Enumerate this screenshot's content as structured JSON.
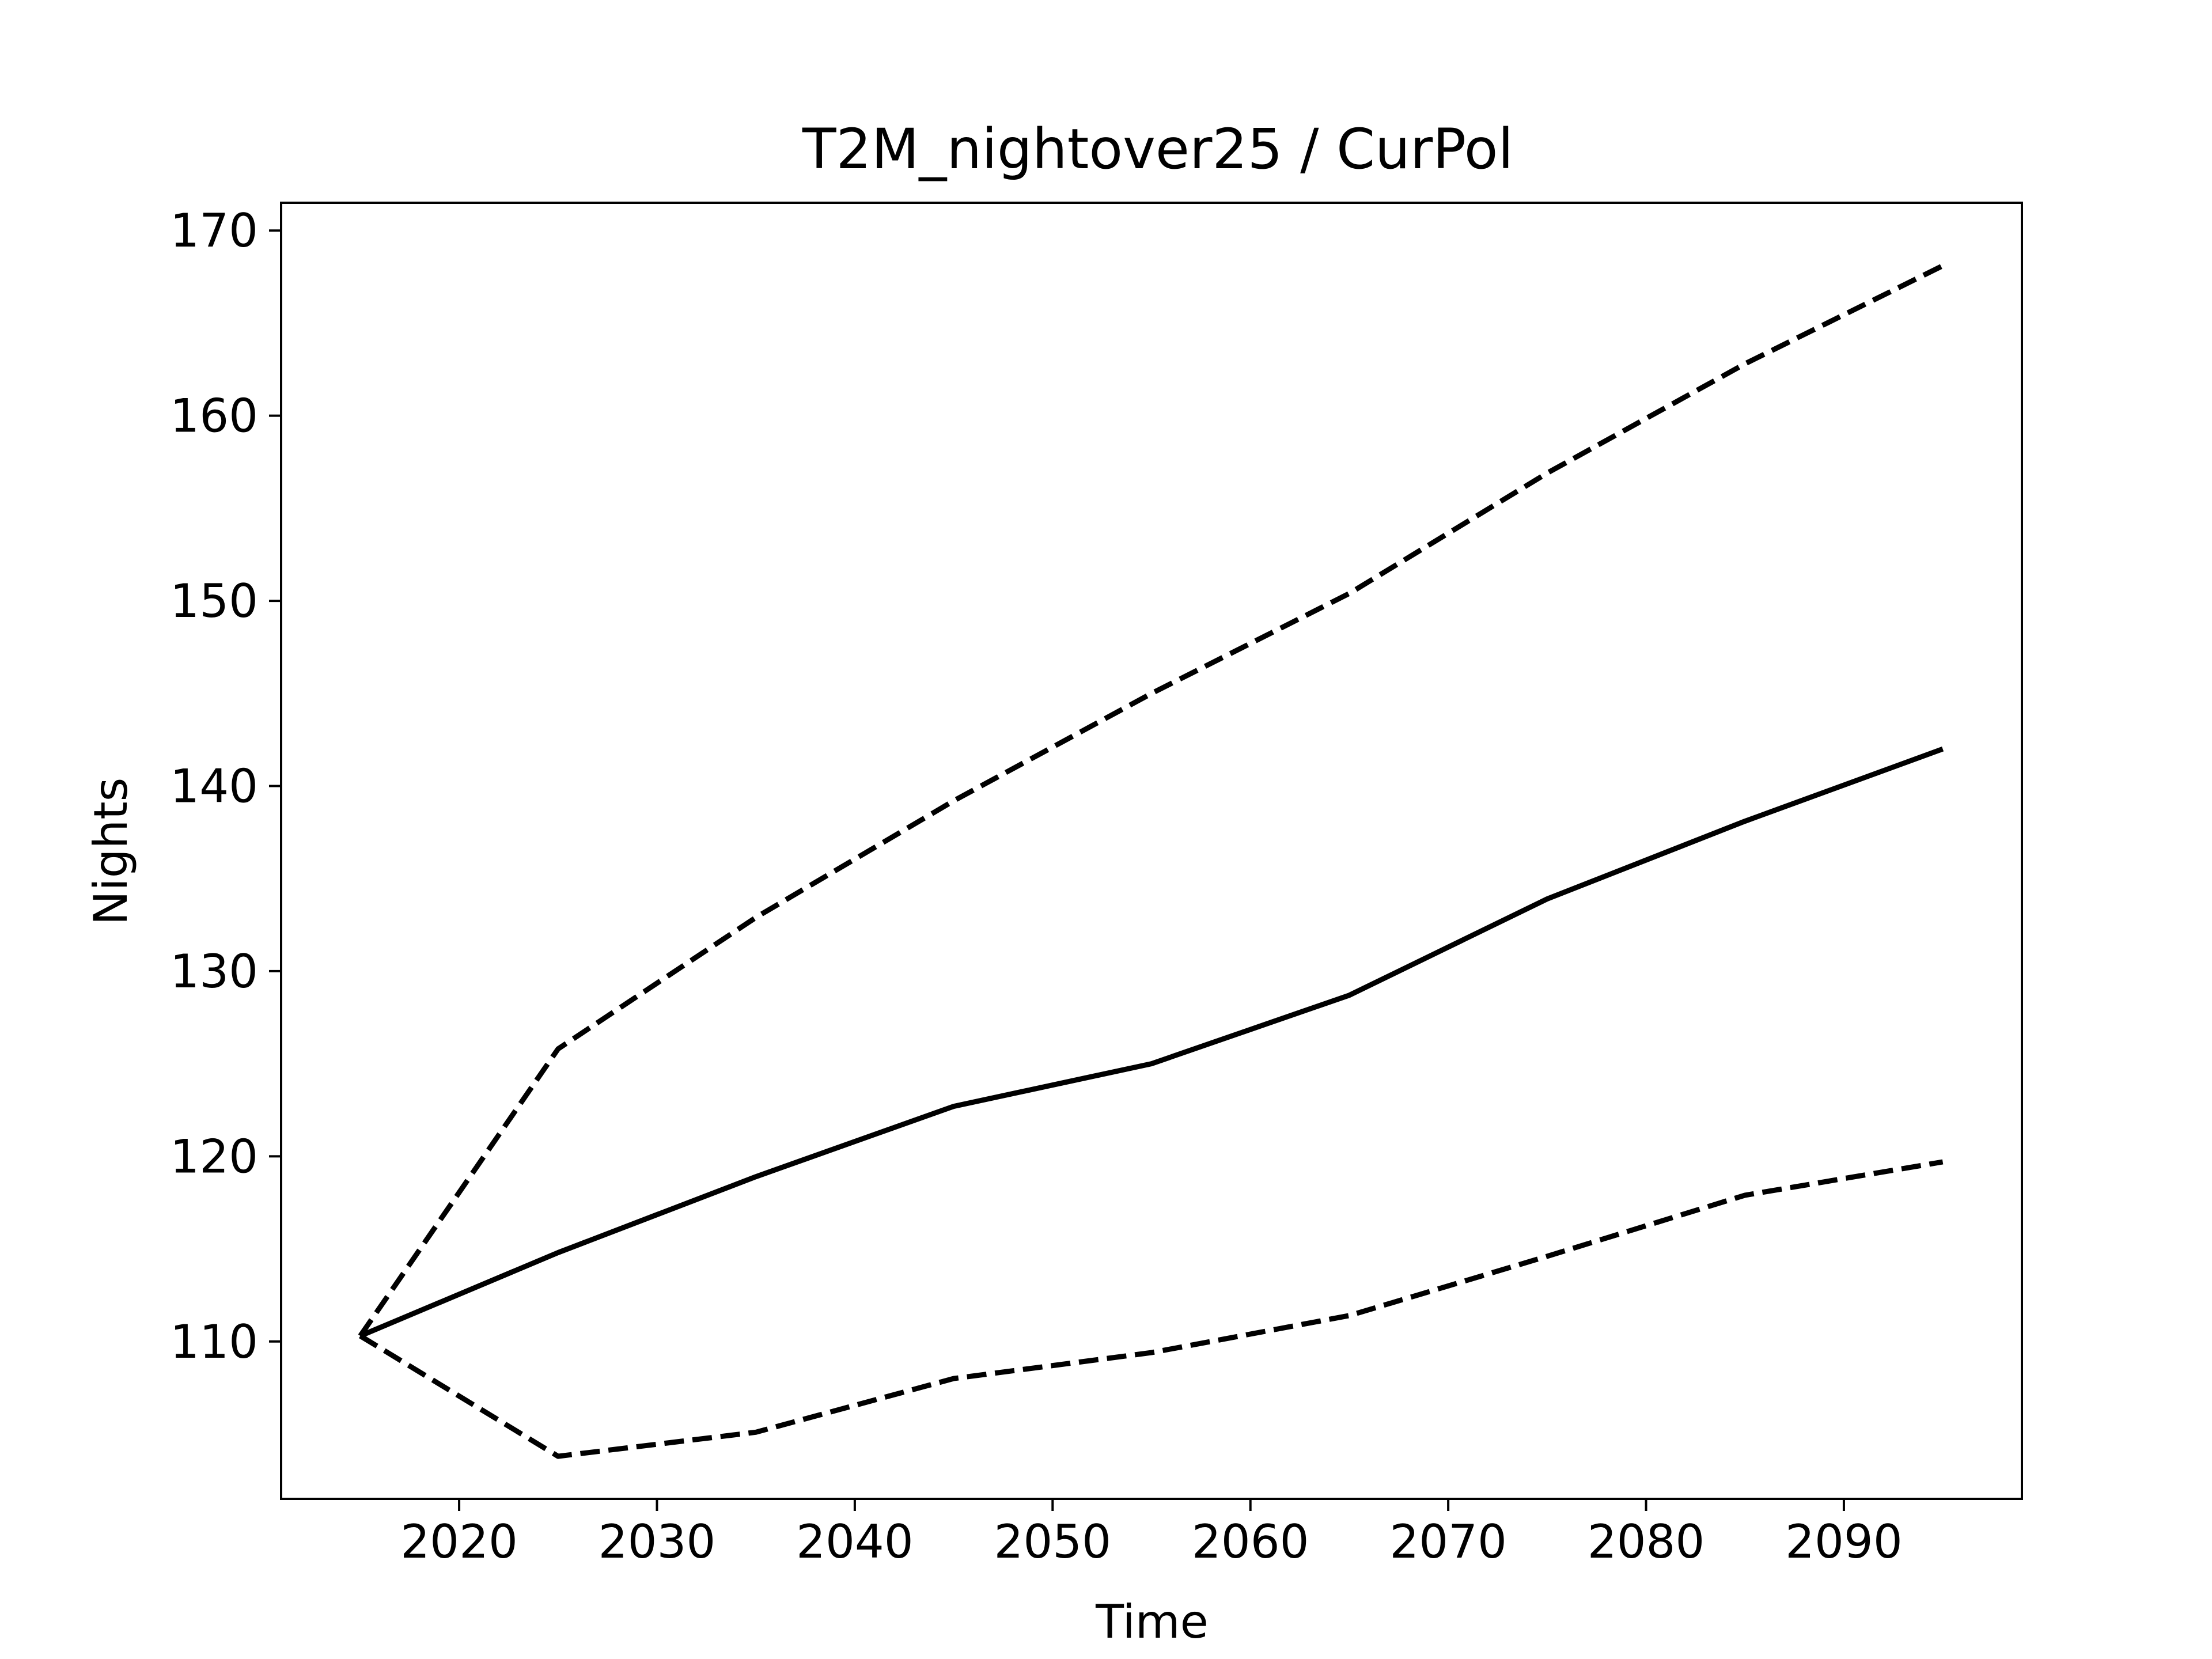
{
  "chart_data": {
    "type": "line",
    "title": "T2M_nightover25 / CurPol",
    "xlabel": "Time",
    "ylabel": "Nights",
    "x": [
      2015,
      2025,
      2035,
      2045,
      2055,
      2065,
      2075,
      2085,
      2095
    ],
    "xlim": [
      2011,
      2099
    ],
    "ylim": [
      101.5,
      171.5
    ],
    "xticks": [
      2020,
      2030,
      2040,
      2050,
      2060,
      2070,
      2080,
      2090
    ],
    "yticks": [
      110,
      120,
      130,
      140,
      150,
      160,
      170
    ],
    "grid": false,
    "series": [
      {
        "style": "solid",
        "color": "#000000",
        "values": [
          110.3,
          114.8,
          118.9,
          122.7,
          125.0,
          128.7,
          133.9,
          138.1,
          142.0
        ]
      },
      {
        "style": "dashed",
        "color": "#000000",
        "values": [
          110.3,
          125.8,
          132.9,
          139.2,
          145.0,
          150.4,
          156.9,
          162.8,
          168.1
        ]
      },
      {
        "style": "dashed",
        "color": "#000000",
        "values": [
          110.3,
          103.8,
          105.1,
          108.0,
          109.4,
          111.4,
          114.6,
          117.9,
          119.7
        ]
      }
    ]
  }
}
